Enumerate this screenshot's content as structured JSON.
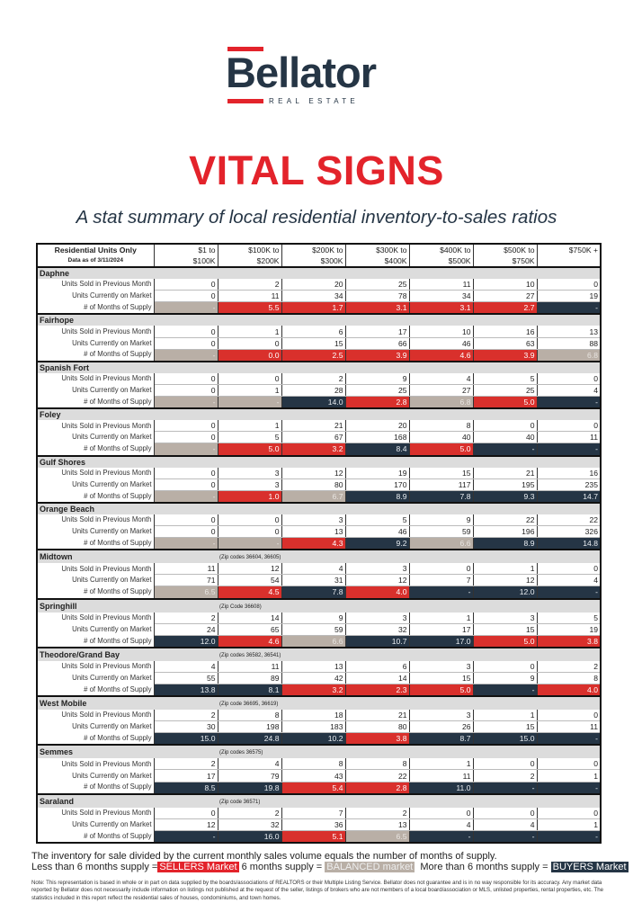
{
  "logo": {
    "name": "Bellator",
    "tagline": "REAL ESTATE"
  },
  "title": "VITAL SIGNS",
  "subtitle": "A stat summary of local residential inventory-to-sales ratios",
  "colors": {
    "sellers": "#d9302c",
    "balanced": "#b9afa6",
    "buyers": "#253545",
    "brand_red": "#e3232b"
  },
  "table": {
    "header_label": "Residential Units Only",
    "data_date": "Data as of 3/11/2024",
    "columns": [
      [
        "$1 to",
        "$100K"
      ],
      [
        "$100K to",
        "$200K"
      ],
      [
        "$200K to",
        "$300K"
      ],
      [
        "$300K to",
        "$400K"
      ],
      [
        "$400K to",
        "$500K"
      ],
      [
        "$500K to",
        "$750K"
      ],
      [
        "$750K +",
        ""
      ]
    ],
    "row_labels": [
      "Units Sold in Previous Month",
      "Units Currently on Market",
      "# of Months of Supply"
    ],
    "areas": [
      {
        "name": "Daphne",
        "note": "",
        "sold": [
          "0",
          "2",
          "20",
          "25",
          "11",
          "10",
          "0"
        ],
        "market": [
          "0",
          "11",
          "34",
          "78",
          "34",
          "27",
          "19"
        ],
        "supply": [
          "-",
          "5.5",
          "1.7",
          "3.1",
          "3.1",
          "2.7",
          "-"
        ],
        "status": [
          "balanced",
          "sellers",
          "sellers",
          "sellers",
          "sellers",
          "sellers",
          "buyers"
        ]
      },
      {
        "name": "Fairhope",
        "note": "",
        "sold": [
          "0",
          "1",
          "6",
          "17",
          "10",
          "16",
          "13"
        ],
        "market": [
          "0",
          "0",
          "15",
          "66",
          "46",
          "63",
          "88"
        ],
        "supply": [
          "-",
          "0.0",
          "2.5",
          "3.9",
          "4.6",
          "3.9",
          "6.8"
        ],
        "status": [
          "balanced",
          "sellers",
          "sellers",
          "sellers",
          "sellers",
          "sellers",
          "balanced"
        ]
      },
      {
        "name": "Spanish Fort",
        "note": "",
        "sold": [
          "0",
          "0",
          "2",
          "9",
          "4",
          "5",
          "0"
        ],
        "market": [
          "0",
          "1",
          "28",
          "25",
          "27",
          "25",
          "4"
        ],
        "supply": [
          "-",
          "-",
          "14.0",
          "2.8",
          "6.8",
          "5.0",
          "-"
        ],
        "status": [
          "balanced",
          "balanced",
          "buyers",
          "sellers",
          "balanced",
          "sellers",
          "buyers"
        ]
      },
      {
        "name": "Foley",
        "note": "",
        "sold": [
          "0",
          "1",
          "21",
          "20",
          "8",
          "0",
          "0"
        ],
        "market": [
          "0",
          "5",
          "67",
          "168",
          "40",
          "40",
          "11"
        ],
        "supply": [
          "-",
          "5.0",
          "3.2",
          "8.4",
          "5.0",
          "-",
          "-"
        ],
        "status": [
          "balanced",
          "sellers",
          "sellers",
          "buyers",
          "sellers",
          "buyers",
          "buyers"
        ]
      },
      {
        "name": "Gulf Shores",
        "note": "",
        "sold": [
          "0",
          "3",
          "12",
          "19",
          "15",
          "21",
          "16"
        ],
        "market": [
          "0",
          "3",
          "80",
          "170",
          "117",
          "195",
          "235"
        ],
        "supply": [
          "-",
          "1.0",
          "6.7",
          "8.9",
          "7.8",
          "9.3",
          "14.7"
        ],
        "status": [
          "balanced",
          "sellers",
          "balanced",
          "buyers",
          "buyers",
          "buyers",
          "buyers"
        ]
      },
      {
        "name": "Orange Beach",
        "note": "",
        "sold": [
          "0",
          "0",
          "3",
          "5",
          "9",
          "22",
          "22"
        ],
        "market": [
          "0",
          "0",
          "13",
          "46",
          "59",
          "196",
          "326"
        ],
        "supply": [
          "-",
          "-",
          "4.3",
          "9.2",
          "6.6",
          "8.9",
          "14.8"
        ],
        "status": [
          "balanced",
          "balanced",
          "sellers",
          "buyers",
          "balanced",
          "buyers",
          "buyers"
        ]
      },
      {
        "name": "Midtown",
        "note": "(Zip codes 36604, 36605)",
        "sold": [
          "11",
          "12",
          "4",
          "3",
          "0",
          "1",
          "0"
        ],
        "market": [
          "71",
          "54",
          "31",
          "12",
          "7",
          "12",
          "4"
        ],
        "supply": [
          "6.5",
          "4.5",
          "7.8",
          "4.0",
          "-",
          "12.0",
          "-"
        ],
        "status": [
          "balanced",
          "sellers",
          "buyers",
          "sellers",
          "buyers",
          "buyers",
          "buyers"
        ]
      },
      {
        "name": "Springhill",
        "note": "(Zip Code 36608)",
        "sold": [
          "2",
          "14",
          "9",
          "3",
          "1",
          "3",
          "5"
        ],
        "market": [
          "24",
          "65",
          "59",
          "32",
          "17",
          "15",
          "19"
        ],
        "supply": [
          "12.0",
          "4.6",
          "6.6",
          "10.7",
          "17.0",
          "5.0",
          "3.8"
        ],
        "status": [
          "buyers",
          "sellers",
          "balanced",
          "buyers",
          "buyers",
          "sellers",
          "sellers"
        ]
      },
      {
        "name": "Theodore/Grand Bay",
        "note": "(Zip codes 36582, 36541)",
        "sold": [
          "4",
          "11",
          "13",
          "6",
          "3",
          "0",
          "2"
        ],
        "market": [
          "55",
          "89",
          "42",
          "14",
          "15",
          "9",
          "8"
        ],
        "supply": [
          "13.8",
          "8.1",
          "3.2",
          "2.3",
          "5.0",
          "-",
          "4.0"
        ],
        "status": [
          "buyers",
          "buyers",
          "sellers",
          "sellers",
          "sellers",
          "buyers",
          "sellers"
        ]
      },
      {
        "name": "West Mobile",
        "note": "(Zip code 36695, 36619)",
        "sold": [
          "2",
          "8",
          "18",
          "21",
          "3",
          "1",
          "0"
        ],
        "market": [
          "30",
          "198",
          "183",
          "80",
          "26",
          "15",
          "11"
        ],
        "supply": [
          "15.0",
          "24.8",
          "10.2",
          "3.8",
          "8.7",
          "15.0",
          "-"
        ],
        "status": [
          "buyers",
          "buyers",
          "buyers",
          "sellers",
          "buyers",
          "buyers",
          "buyers"
        ]
      },
      {
        "name": "Semmes",
        "note": "(Zip codes 36575)",
        "sold": [
          "2",
          "4",
          "8",
          "8",
          "1",
          "0",
          "0"
        ],
        "market": [
          "17",
          "79",
          "43",
          "22",
          "11",
          "2",
          "1"
        ],
        "supply": [
          "8.5",
          "19.8",
          "5.4",
          "2.8",
          "11.0",
          "-",
          "-"
        ],
        "status": [
          "buyers",
          "buyers",
          "sellers",
          "sellers",
          "buyers",
          "buyers",
          "buyers"
        ]
      },
      {
        "name": "Saraland",
        "note": "(Zip code 36571)",
        "sold": [
          "0",
          "2",
          "7",
          "2",
          "0",
          "0",
          "0"
        ],
        "market": [
          "12",
          "32",
          "36",
          "13",
          "4",
          "4",
          "1"
        ],
        "supply": [
          "-",
          "16.0",
          "5.1",
          "6.5",
          "-",
          "-",
          "-"
        ],
        "status": [
          "buyers",
          "buyers",
          "sellers",
          "balanced",
          "buyers",
          "buyers",
          "buyers"
        ]
      }
    ]
  },
  "footer": {
    "explanation": "The inventory for sale divided by the current monthly sales volume equals the number of months of supply.",
    "less_text": "Less than 6 months supply =",
    "sellers_label": "SELLERS Market",
    "six_text": "6 months supply =",
    "balanced_label": "BALANCED market",
    "more_text": "More than 6 months supply =",
    "buyers_label": "BUYERS Market",
    "note": "Note: This representation is based in whole or in part on data supplied by the boards/associations of REALTORS or their Multiple Listing Service. Bellator does not guarantee and is in no way responsible for its accuracy. Any market data reported by Bellator does not necessarily include information on listings not published at the request of the seller, listings of brokers who are not members of a local board/association or MLS, unlisted properties, rental properties, etc. The statistics included in this report reflect the residential sales of houses, condominiums, and town homes."
  }
}
